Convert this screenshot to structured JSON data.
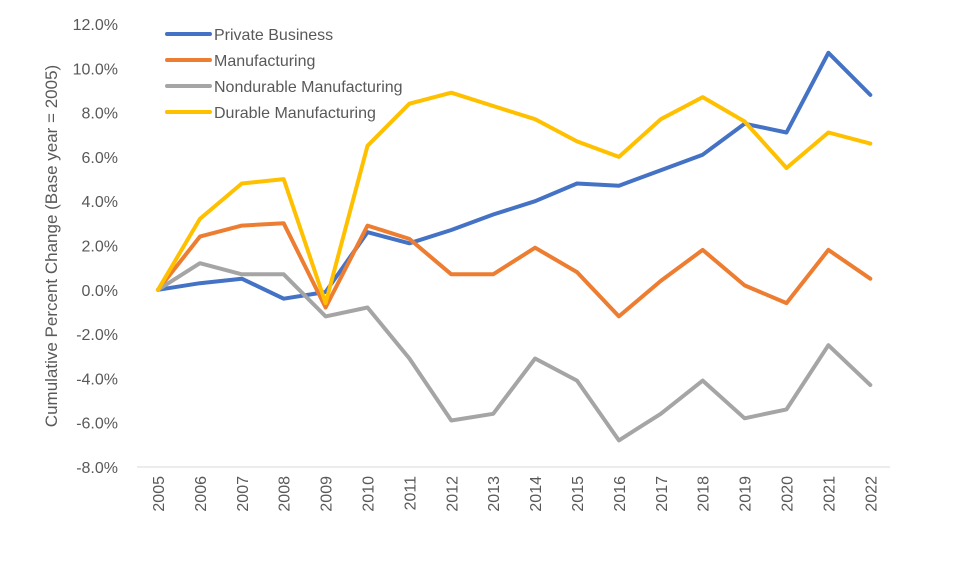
{
  "chart_data": {
    "type": "line",
    "title": "",
    "xlabel": "",
    "ylabel": "Cumulative Percent Change (Base year = 2005)",
    "ylim": [
      -8,
      12
    ],
    "yticks": [
      "-8.0%",
      "-6.0%",
      "-4.0%",
      "-2.0%",
      "0.0%",
      "2.0%",
      "4.0%",
      "6.0%",
      "8.0%",
      "10.0%",
      "12.0%"
    ],
    "ytick_values": [
      -8,
      -6,
      -4,
      -2,
      0,
      2,
      4,
      6,
      8,
      10,
      12
    ],
    "grid": false,
    "legend_position": "top-left",
    "categories": [
      "2005",
      "2006",
      "2007",
      "2008",
      "2009",
      "2010",
      "2011",
      "2012",
      "2013",
      "2014",
      "2015",
      "2016",
      "2017",
      "2018",
      "2019",
      "2020",
      "2021",
      "2022"
    ],
    "series": [
      {
        "name": "Private Business",
        "color": "#4472C4",
        "values": [
          0,
          0.3,
          0.5,
          -0.4,
          -0.1,
          2.6,
          2.1,
          2.7,
          3.4,
          4.0,
          4.8,
          4.7,
          5.4,
          6.1,
          7.5,
          7.1,
          10.7,
          8.8
        ]
      },
      {
        "name": "Manufacturing",
        "color": "#ED7D31",
        "values": [
          0,
          2.4,
          2.9,
          3.0,
          -0.8,
          2.9,
          2.3,
          0.7,
          0.7,
          1.9,
          0.8,
          -1.2,
          0.4,
          1.8,
          0.2,
          -0.6,
          1.8,
          0.5
        ]
      },
      {
        "name": "Nondurable Manufacturing",
        "color": "#A5A5A5",
        "values": [
          0,
          1.2,
          0.7,
          0.7,
          -1.2,
          -0.8,
          -3.1,
          -5.9,
          -5.6,
          -3.1,
          -4.1,
          -6.8,
          -5.6,
          -4.1,
          -5.8,
          -5.4,
          -2.5,
          -4.3
        ]
      },
      {
        "name": "Durable Manufacturing",
        "color": "#FFC000",
        "values": [
          0,
          3.2,
          4.8,
          5.0,
          -0.6,
          6.5,
          8.4,
          8.9,
          8.3,
          7.7,
          6.7,
          6.0,
          7.7,
          8.7,
          7.6,
          5.5,
          7.1,
          6.6
        ]
      }
    ]
  }
}
